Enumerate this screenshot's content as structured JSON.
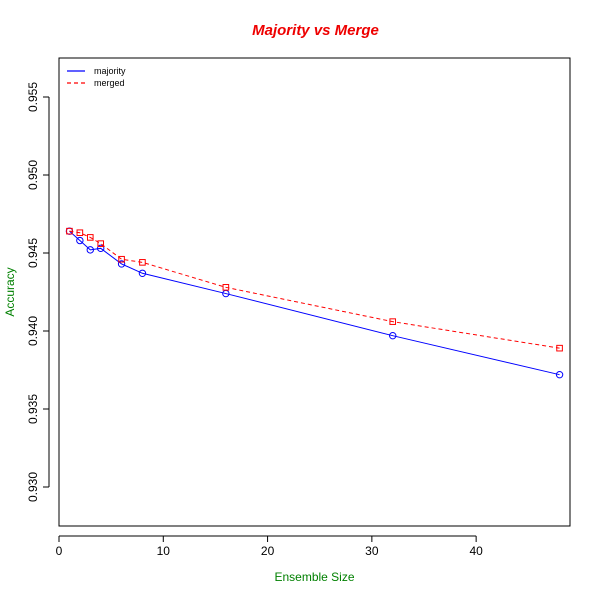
{
  "colors": {
    "title": "#ee0000",
    "axis_label": "#008000",
    "majority": "#0000ff",
    "merged": "#ff0000",
    "axis": "#000000"
  },
  "chart_data": {
    "type": "line",
    "title": "Majority vs Merge",
    "xlabel": "Ensemble Size",
    "ylabel": "Accuracy",
    "xlim": [
      0,
      49
    ],
    "ylim": [
      0.9275,
      0.9575
    ],
    "x_ticks": [
      0,
      10,
      20,
      30,
      40
    ],
    "x_tick_labels": [
      "0",
      "10",
      "20",
      "30",
      "40"
    ],
    "y_ticks": [
      0.93,
      0.935,
      0.94,
      0.945,
      0.95,
      0.955
    ],
    "y_tick_labels": [
      "0.930",
      "0.935",
      "0.940",
      "0.945",
      "0.950",
      "0.955"
    ],
    "grid": false,
    "legend_position": "top-left",
    "x": [
      1,
      2,
      3,
      4,
      6,
      8,
      16,
      32,
      48
    ],
    "series": [
      {
        "name": "majority",
        "line_style": "solid",
        "marker": "circle",
        "values": [
          0.9464,
          0.9458,
          0.9452,
          0.9453,
          0.9443,
          0.9437,
          0.9424,
          0.9397,
          0.9372
        ]
      },
      {
        "name": "merged",
        "line_style": "dashed",
        "marker": "square",
        "values": [
          0.9464,
          0.9463,
          0.946,
          0.9456,
          0.9446,
          0.9444,
          0.9428,
          0.9406,
          0.9389
        ]
      }
    ]
  }
}
